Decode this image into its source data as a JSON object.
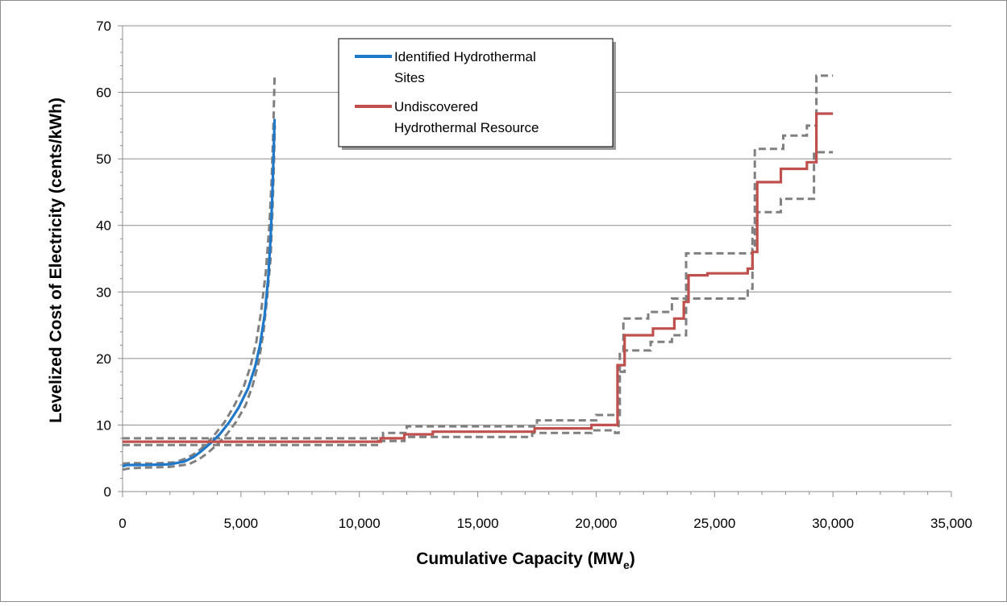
{
  "chart_data": {
    "type": "line",
    "xlabel": "Cumulative Capacity (MW",
    "xlabel_subscript": "e",
    "xlabel_suffix": ")",
    "ylabel": "Levelized Cost of Electricity (cents/kWh)",
    "xlim": [
      0,
      35000
    ],
    "ylim": [
      0,
      70
    ],
    "x_ticks": [
      0,
      5000,
      10000,
      15000,
      20000,
      25000,
      30000,
      35000
    ],
    "x_tick_labels": [
      "0",
      "5,000",
      "10,000",
      "15,000",
      "20,000",
      "25,000",
      "30,000",
      "35,000"
    ],
    "y_ticks": [
      0,
      10,
      20,
      30,
      40,
      50,
      60,
      70
    ],
    "y_tick_labels": [
      "0",
      "10",
      "20",
      "30",
      "40",
      "50",
      "60",
      "70"
    ],
    "grid": "horizontal",
    "legend_position": "top-center",
    "legend": [
      {
        "lines": [
          "Identified Hydrothermal",
          "Sites"
        ],
        "color": "#1f78c8"
      },
      {
        "lines": [
          "Undiscovered",
          "Hydrothermal Resource"
        ],
        "color": "#c0504d"
      }
    ],
    "series": [
      {
        "name": "Identified Hydrothermal Sites",
        "color": "#1f78c8",
        "style": "solid",
        "points": [
          [
            0,
            3.8
          ],
          [
            200,
            4.0
          ],
          [
            1000,
            4.0
          ],
          [
            2000,
            4.1
          ],
          [
            2600,
            4.5
          ],
          [
            3000,
            5.2
          ],
          [
            3300,
            6.0
          ],
          [
            3700,
            7.2
          ],
          [
            4100,
            8.6
          ],
          [
            4500,
            10.4
          ],
          [
            4900,
            12.6
          ],
          [
            5300,
            15.5
          ],
          [
            5600,
            18.8
          ],
          [
            5800,
            22.0
          ],
          [
            6000,
            26.5
          ],
          [
            6150,
            32.0
          ],
          [
            6250,
            38.0
          ],
          [
            6330,
            45.0
          ],
          [
            6380,
            51.0
          ],
          [
            6420,
            56.0
          ]
        ]
      },
      {
        "name": "Identified Hydrothermal Sites (upper bound)",
        "color": "#808080",
        "style": "dashed",
        "points": [
          [
            0,
            4.2
          ],
          [
            400,
            4.3
          ],
          [
            1200,
            4.2
          ],
          [
            2200,
            4.4
          ],
          [
            2700,
            5.0
          ],
          [
            3100,
            5.8
          ],
          [
            3500,
            7.0
          ],
          [
            3900,
            8.6
          ],
          [
            4300,
            10.4
          ],
          [
            4700,
            12.8
          ],
          [
            5100,
            15.6
          ],
          [
            5400,
            18.8
          ],
          [
            5650,
            22.5
          ],
          [
            5850,
            27.0
          ],
          [
            6050,
            33.0
          ],
          [
            6200,
            40.0
          ],
          [
            6300,
            47.0
          ],
          [
            6370,
            55.0
          ],
          [
            6420,
            62.5
          ]
        ]
      },
      {
        "name": "Identified Hydrothermal Sites (lower bound)",
        "color": "#808080",
        "style": "dashed",
        "points": [
          [
            0,
            3.3
          ],
          [
            300,
            3.5
          ],
          [
            1000,
            3.6
          ],
          [
            2000,
            3.7
          ],
          [
            2800,
            4.1
          ],
          [
            3200,
            4.8
          ],
          [
            3600,
            5.8
          ],
          [
            4000,
            7.1
          ],
          [
            4400,
            8.6
          ],
          [
            4800,
            10.5
          ],
          [
            5200,
            13.0
          ],
          [
            5500,
            16.0
          ],
          [
            5750,
            19.5
          ],
          [
            5950,
            24.0
          ],
          [
            6100,
            29.0
          ],
          [
            6250,
            35.0
          ],
          [
            6330,
            42.0
          ],
          [
            6390,
            49.0
          ],
          [
            6430,
            55.0
          ]
        ]
      },
      {
        "name": "Undiscovered Hydrothermal Resource",
        "color": "#c0504d",
        "style": "solid",
        "points": [
          [
            0,
            7.5
          ],
          [
            10900,
            7.5
          ],
          [
            10900,
            8.0
          ],
          [
            11900,
            8.0
          ],
          [
            11900,
            8.6
          ],
          [
            13100,
            8.6
          ],
          [
            13100,
            9.0
          ],
          [
            17400,
            9.0
          ],
          [
            17400,
            9.5
          ],
          [
            19800,
            9.5
          ],
          [
            19800,
            10.0
          ],
          [
            20900,
            10.0
          ],
          [
            20900,
            19.0
          ],
          [
            21200,
            19.0
          ],
          [
            21200,
            23.5
          ],
          [
            22400,
            23.5
          ],
          [
            22400,
            24.5
          ],
          [
            23300,
            24.5
          ],
          [
            23300,
            26.0
          ],
          [
            23700,
            26.0
          ],
          [
            23700,
            28.5
          ],
          [
            23900,
            28.5
          ],
          [
            23900,
            32.5
          ],
          [
            24700,
            32.5
          ],
          [
            24700,
            32.8
          ],
          [
            26400,
            32.8
          ],
          [
            26400,
            33.5
          ],
          [
            26600,
            33.5
          ],
          [
            26600,
            36.0
          ],
          [
            26800,
            36.0
          ],
          [
            26800,
            46.5
          ],
          [
            27800,
            46.5
          ],
          [
            27800,
            48.5
          ],
          [
            28900,
            48.5
          ],
          [
            28900,
            49.5
          ],
          [
            29300,
            49.5
          ],
          [
            29300,
            56.8
          ],
          [
            30000,
            56.8
          ]
        ]
      },
      {
        "name": "Undiscovered Hydrothermal Resource (upper bound)",
        "color": "#808080",
        "style": "dashed",
        "points": [
          [
            0,
            8.0
          ],
          [
            11000,
            8.0
          ],
          [
            11000,
            8.8
          ],
          [
            12000,
            8.8
          ],
          [
            12000,
            9.8
          ],
          [
            17500,
            9.8
          ],
          [
            17500,
            10.7
          ],
          [
            20000,
            10.7
          ],
          [
            20000,
            11.5
          ],
          [
            21000,
            11.5
          ],
          [
            21000,
            21.0
          ],
          [
            21150,
            21.0
          ],
          [
            21150,
            26.0
          ],
          [
            22200,
            26.0
          ],
          [
            22200,
            27.0
          ],
          [
            23200,
            27.0
          ],
          [
            23200,
            29.0
          ],
          [
            23800,
            29.0
          ],
          [
            23800,
            35.8
          ],
          [
            26600,
            35.8
          ],
          [
            26600,
            36.5
          ],
          [
            26700,
            36.5
          ],
          [
            26700,
            51.5
          ],
          [
            27900,
            51.5
          ],
          [
            27900,
            53.5
          ],
          [
            28900,
            53.5
          ],
          [
            28900,
            55.0
          ],
          [
            29300,
            55.0
          ],
          [
            29300,
            62.5
          ],
          [
            30000,
            62.5
          ]
        ]
      },
      {
        "name": "Undiscovered Hydrothermal Resource (lower bound)",
        "color": "#808080",
        "style": "dashed",
        "points": [
          [
            0,
            7.0
          ],
          [
            10800,
            7.0
          ],
          [
            10800,
            7.6
          ],
          [
            11900,
            7.6
          ],
          [
            11900,
            8.2
          ],
          [
            17300,
            8.2
          ],
          [
            17300,
            8.8
          ],
          [
            19800,
            8.8
          ],
          [
            19800,
            9.2
          ],
          [
            20800,
            9.2
          ],
          [
            20800,
            8.8
          ],
          [
            20950,
            8.8
          ],
          [
            20950,
            18.0
          ],
          [
            21200,
            18.0
          ],
          [
            21200,
            21.2
          ],
          [
            22300,
            21.2
          ],
          [
            22300,
            22.5
          ],
          [
            23200,
            22.5
          ],
          [
            23200,
            23.5
          ],
          [
            23800,
            23.5
          ],
          [
            23800,
            29.0
          ],
          [
            26400,
            29.0
          ],
          [
            26400,
            30.5
          ],
          [
            26600,
            30.5
          ],
          [
            26600,
            40.0
          ],
          [
            26800,
            40.0
          ],
          [
            26800,
            42.0
          ],
          [
            27800,
            42.0
          ],
          [
            27800,
            44.0
          ],
          [
            29200,
            44.0
          ],
          [
            29200,
            51.0
          ],
          [
            30000,
            51.0
          ]
        ]
      }
    ]
  }
}
